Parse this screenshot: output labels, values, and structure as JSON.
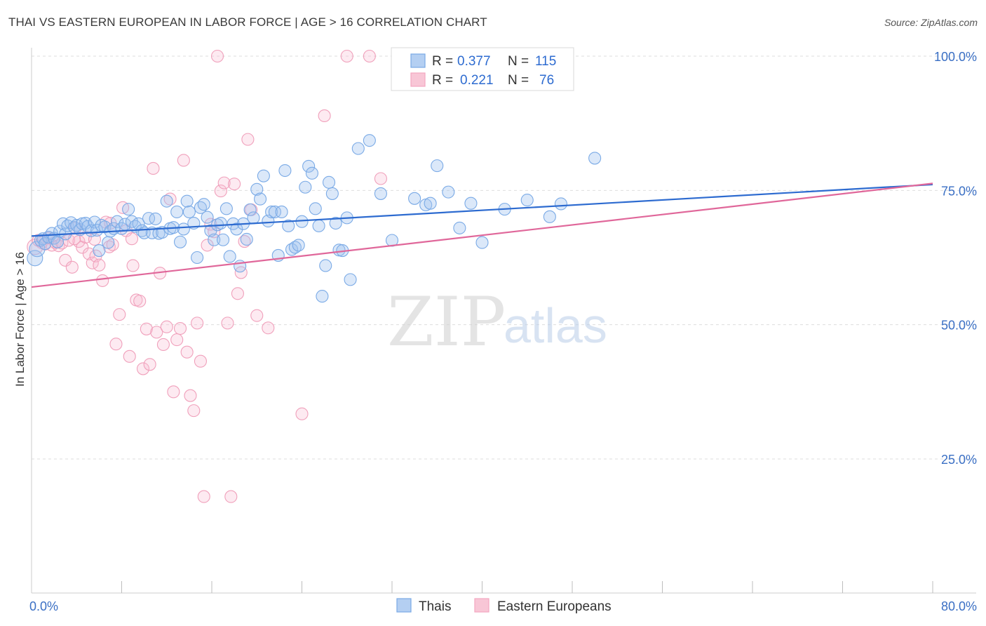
{
  "header": {
    "title": "THAI VS EASTERN EUROPEAN IN LABOR FORCE | AGE > 16 CORRELATION CHART",
    "source": "Source: ZipAtlas.com"
  },
  "legend_top": {
    "rows": [
      {
        "r_label": "R =",
        "r_value": "0.377",
        "n_label": "N =",
        "n_value": "115"
      },
      {
        "r_label": "R =",
        "r_value": "0.221",
        "n_label": "N =",
        "n_value": "76"
      }
    ]
  },
  "legend_bottom": {
    "items": [
      {
        "label": "Thais"
      },
      {
        "label": "Eastern Europeans"
      }
    ]
  },
  "watermark": {
    "zip": "ZIP",
    "atlas": "atlas"
  },
  "chart_data": {
    "type": "scatter",
    "title": "THAI VS EASTERN EUROPEAN IN LABOR FORCE | AGE > 16 CORRELATION CHART",
    "ylabel": "In Labor Force | Age > 16",
    "xlabel": "",
    "xlim": [
      0,
      80
    ],
    "ylim": [
      0,
      103
    ],
    "x_tick_labels": [
      "0.0%",
      "80.0%"
    ],
    "y_ticks": [
      25,
      50,
      75,
      100
    ],
    "y_tick_labels": [
      "25.0%",
      "50.0%",
      "75.0%",
      "100.0%"
    ],
    "grid": "horizontal dashed",
    "legend_position": "top-center",
    "colors": {
      "thais": "#7aaae6",
      "thais_line": "#2d6bd0",
      "eastern": "#f4a7c0",
      "eastern_line": "#e0679a"
    },
    "series": [
      {
        "name": "Thais",
        "R": 0.377,
        "N": 115,
        "trend": {
          "x": [
            0,
            80
          ],
          "y": [
            66.5,
            76.1
          ]
        },
        "points": [
          [
            0.3,
            62.4
          ],
          [
            0.5,
            64.1
          ],
          [
            0.8,
            65.7
          ],
          [
            1.0,
            66.0
          ],
          [
            1.2,
            65.1
          ],
          [
            1.5,
            66.3
          ],
          [
            1.8,
            67.0
          ],
          [
            2.0,
            66.1
          ],
          [
            2.3,
            65.4
          ],
          [
            2.5,
            67.4
          ],
          [
            2.8,
            68.8
          ],
          [
            3.0,
            66.9
          ],
          [
            3.2,
            68.4
          ],
          [
            3.5,
            69.0
          ],
          [
            3.8,
            68.1
          ],
          [
            4.0,
            68.5
          ],
          [
            4.3,
            67.7
          ],
          [
            4.5,
            68.8
          ],
          [
            4.8,
            68.9
          ],
          [
            5.0,
            68.3
          ],
          [
            5.3,
            67.5
          ],
          [
            5.6,
            69.1
          ],
          [
            5.8,
            67.6
          ],
          [
            6.0,
            63.8
          ],
          [
            6.2,
            68.5
          ],
          [
            6.5,
            68.2
          ],
          [
            6.8,
            65.3
          ],
          [
            7.0,
            67.4
          ],
          [
            7.3,
            67.9
          ],
          [
            7.6,
            69.2
          ],
          [
            8.0,
            67.9
          ],
          [
            8.3,
            68.7
          ],
          [
            8.6,
            71.5
          ],
          [
            8.9,
            69.2
          ],
          [
            9.2,
            68.3
          ],
          [
            9.5,
            68.8
          ],
          [
            9.8,
            67.5
          ],
          [
            10.0,
            67.1
          ],
          [
            10.4,
            69.8
          ],
          [
            10.7,
            67.1
          ],
          [
            11.0,
            69.7
          ],
          [
            11.3,
            67.0
          ],
          [
            11.6,
            67.2
          ],
          [
            12.0,
            73.0
          ],
          [
            12.3,
            67.9
          ],
          [
            12.6,
            68.1
          ],
          [
            12.9,
            71.0
          ],
          [
            13.2,
            65.4
          ],
          [
            13.5,
            67.8
          ],
          [
            13.8,
            73.0
          ],
          [
            14.0,
            71.0
          ],
          [
            14.4,
            68.9
          ],
          [
            14.7,
            62.5
          ],
          [
            15.0,
            71.8
          ],
          [
            15.3,
            72.4
          ],
          [
            15.6,
            70.0
          ],
          [
            15.9,
            67.5
          ],
          [
            16.2,
            65.8
          ],
          [
            16.5,
            68.6
          ],
          [
            16.8,
            68.9
          ],
          [
            17.0,
            65.8
          ],
          [
            17.3,
            71.6
          ],
          [
            17.6,
            62.7
          ],
          [
            17.9,
            68.8
          ],
          [
            18.2,
            67.8
          ],
          [
            18.5,
            60.9
          ],
          [
            18.8,
            68.8
          ],
          [
            19.1,
            65.9
          ],
          [
            19.4,
            71.4
          ],
          [
            19.7,
            69.9
          ],
          [
            20.0,
            75.2
          ],
          [
            20.3,
            73.4
          ],
          [
            20.6,
            77.7
          ],
          [
            21.0,
            69.3
          ],
          [
            21.3,
            71.0
          ],
          [
            21.6,
            71.0
          ],
          [
            21.9,
            62.9
          ],
          [
            22.2,
            71.0
          ],
          [
            22.5,
            78.7
          ],
          [
            22.8,
            68.4
          ],
          [
            23.1,
            64.0
          ],
          [
            23.4,
            64.4
          ],
          [
            23.7,
            64.8
          ],
          [
            24.0,
            69.2
          ],
          [
            24.3,
            75.6
          ],
          [
            24.6,
            79.5
          ],
          [
            24.9,
            78.2
          ],
          [
            25.2,
            71.6
          ],
          [
            25.5,
            68.4
          ],
          [
            25.8,
            55.3
          ],
          [
            26.1,
            61.0
          ],
          [
            26.4,
            76.5
          ],
          [
            26.7,
            74.4
          ],
          [
            27.0,
            68.9
          ],
          [
            27.3,
            63.9
          ],
          [
            27.6,
            63.8
          ],
          [
            28.0,
            69.9
          ],
          [
            28.3,
            58.4
          ],
          [
            29.0,
            82.8
          ],
          [
            30.0,
            84.3
          ],
          [
            31.0,
            74.4
          ],
          [
            32.0,
            65.7
          ],
          [
            34.0,
            73.5
          ],
          [
            35.0,
            72.3
          ],
          [
            35.4,
            72.6
          ],
          [
            36.0,
            79.6
          ],
          [
            37.0,
            74.7
          ],
          [
            38.0,
            68.0
          ],
          [
            39.0,
            72.6
          ],
          [
            40.0,
            65.3
          ],
          [
            42.0,
            71.5
          ],
          [
            44.0,
            73.2
          ],
          [
            46.0,
            70.1
          ],
          [
            47.0,
            72.5
          ],
          [
            50.0,
            81.0
          ]
        ]
      },
      {
        "name": "Eastern Europeans",
        "R": 0.221,
        "N": 76,
        "trend": {
          "x": [
            0,
            80
          ],
          "y": [
            57.0,
            76.3
          ]
        },
        "points": [
          [
            0.3,
            64.5
          ],
          [
            0.6,
            65.7
          ],
          [
            0.9,
            65.3
          ],
          [
            1.2,
            65.0
          ],
          [
            1.5,
            66.1
          ],
          [
            1.8,
            64.8
          ],
          [
            2.1,
            65.3
          ],
          [
            2.4,
            64.7
          ],
          [
            2.7,
            65.2
          ],
          [
            3.0,
            62.0
          ],
          [
            3.3,
            65.7
          ],
          [
            3.6,
            60.7
          ],
          [
            3.9,
            68.0
          ],
          [
            4.2,
            65.5
          ],
          [
            4.5,
            64.4
          ],
          [
            4.8,
            66.3
          ],
          [
            5.1,
            63.2
          ],
          [
            5.4,
            61.5
          ],
          [
            5.7,
            62.8
          ],
          [
            6.0,
            61.1
          ],
          [
            6.3,
            58.2
          ],
          [
            6.6,
            69.1
          ],
          [
            6.9,
            64.5
          ],
          [
            7.2,
            64.9
          ],
          [
            7.5,
            46.4
          ],
          [
            7.8,
            51.9
          ],
          [
            8.1,
            71.8
          ],
          [
            8.4,
            67.5
          ],
          [
            8.7,
            44.1
          ],
          [
            9.0,
            61.0
          ],
          [
            9.3,
            54.6
          ],
          [
            9.6,
            54.4
          ],
          [
            9.9,
            41.8
          ],
          [
            10.2,
            49.2
          ],
          [
            10.5,
            42.6
          ],
          [
            10.8,
            79.1
          ],
          [
            11.1,
            48.6
          ],
          [
            11.4,
            59.6
          ],
          [
            11.7,
            46.3
          ],
          [
            12.0,
            49.6
          ],
          [
            12.3,
            73.4
          ],
          [
            12.6,
            37.5
          ],
          [
            12.9,
            47.2
          ],
          [
            13.2,
            49.3
          ],
          [
            13.5,
            80.6
          ],
          [
            13.8,
            44.9
          ],
          [
            14.1,
            36.8
          ],
          [
            14.4,
            34.0
          ],
          [
            14.7,
            50.3
          ],
          [
            15.0,
            43.2
          ],
          [
            15.3,
            18.0
          ],
          [
            15.6,
            64.8
          ],
          [
            15.9,
            68.7
          ],
          [
            16.2,
            67.3
          ],
          [
            16.5,
            100.0
          ],
          [
            16.8,
            74.9
          ],
          [
            17.1,
            76.4
          ],
          [
            17.4,
            50.3
          ],
          [
            17.7,
            18.0
          ],
          [
            18.0,
            76.2
          ],
          [
            18.3,
            55.8
          ],
          [
            18.6,
            59.7
          ],
          [
            18.9,
            65.5
          ],
          [
            19.2,
            84.5
          ],
          [
            19.5,
            71.4
          ],
          [
            20.0,
            51.7
          ],
          [
            21.0,
            49.4
          ],
          [
            24.0,
            33.4
          ],
          [
            26.0,
            88.9
          ],
          [
            28.0,
            100.0
          ],
          [
            30.0,
            100.0
          ],
          [
            31.0,
            77.2
          ],
          [
            3.8,
            66.0
          ],
          [
            5.6,
            65.9
          ],
          [
            7.0,
            68.9
          ],
          [
            8.9,
            66.0
          ]
        ]
      }
    ]
  }
}
